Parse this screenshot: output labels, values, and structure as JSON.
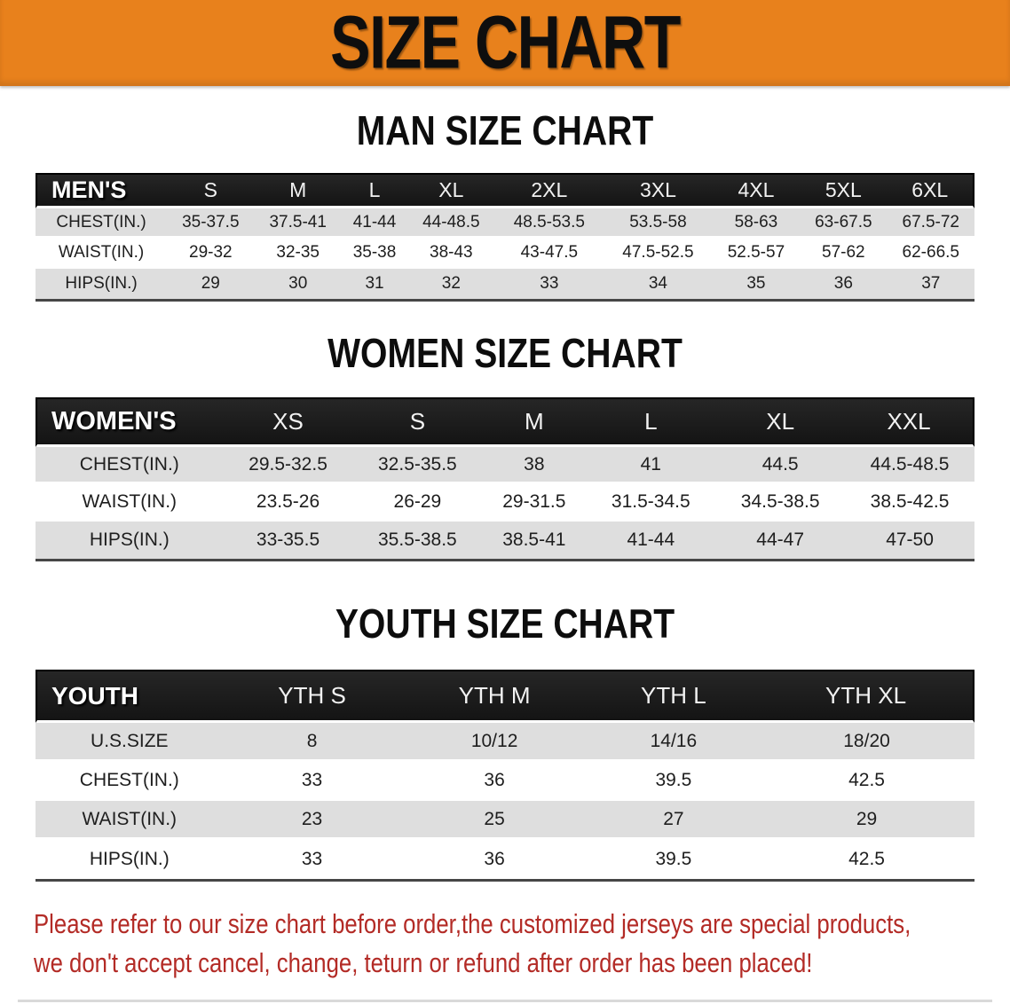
{
  "banner": {
    "title": "SIZE CHART",
    "bg_color": "#e8811c"
  },
  "sections": [
    {
      "id": "men",
      "heading": "MAN SIZE CHART",
      "table": {
        "header_label": "MEN'S",
        "columns": [
          "S",
          "M",
          "L",
          "XL",
          "2XL",
          "3XL",
          "4XL",
          "5XL",
          "6XL"
        ],
        "rows": [
          {
            "label": "CHEST(IN.)",
            "values": [
              "35-37.5",
              "37.5-41",
              "41-44",
              "44-48.5",
              "48.5-53.5",
              "53.5-58",
              "58-63",
              "63-67.5",
              "67.5-72"
            ]
          },
          {
            "label": "WAIST(IN.)",
            "values": [
              "29-32",
              "32-35",
              "35-38",
              "38-43",
              "43-47.5",
              "47.5-52.5",
              "52.5-57",
              "57-62",
              "62-66.5"
            ]
          },
          {
            "label": "HIPS(IN.)",
            "values": [
              "29",
              "30",
              "31",
              "32",
              "33",
              "34",
              "35",
              "36",
              "37"
            ]
          }
        ]
      }
    },
    {
      "id": "women",
      "heading": "WOMEN SIZE CHART",
      "table": {
        "header_label": "WOMEN'S",
        "columns": [
          "XS",
          "S",
          "M",
          "L",
          "XL",
          "XXL"
        ],
        "rows": [
          {
            "label": "CHEST(IN.)",
            "values": [
              "29.5-32.5",
              "32.5-35.5",
              "38",
              "41",
              "44.5",
              "44.5-48.5"
            ]
          },
          {
            "label": "WAIST(IN.)",
            "values": [
              "23.5-26",
              "26-29",
              "29-31.5",
              "31.5-34.5",
              "34.5-38.5",
              "38.5-42.5"
            ]
          },
          {
            "label": "HIPS(IN.)",
            "values": [
              "33-35.5",
              "35.5-38.5",
              "38.5-41",
              "41-44",
              "44-47",
              "47-50"
            ]
          }
        ]
      }
    },
    {
      "id": "youth",
      "heading": "YOUTH SIZE CHART",
      "table": {
        "header_label": "YOUTH",
        "columns": [
          "YTH S",
          "YTH M",
          "YTH L",
          "YTH XL"
        ],
        "rows": [
          {
            "label": "U.S.SIZE",
            "values": [
              "8",
              "10/12",
              "14/16",
              "18/20"
            ]
          },
          {
            "label": "CHEST(IN.)",
            "values": [
              "33",
              "36",
              "39.5",
              "42.5"
            ]
          },
          {
            "label": "WAIST(IN.)",
            "values": [
              "23",
              "25",
              "27",
              "29"
            ]
          },
          {
            "label": "HIPS(IN.)",
            "values": [
              "33",
              "36",
              "39.5",
              "42.5"
            ]
          }
        ]
      }
    }
  ],
  "disclaimer": {
    "line1": "Please refer to our size chart before order,the customized jerseys are special products,",
    "line2": "we don't accept cancel, change, teturn or refund after order has been placed!",
    "color": "#b32b26"
  }
}
